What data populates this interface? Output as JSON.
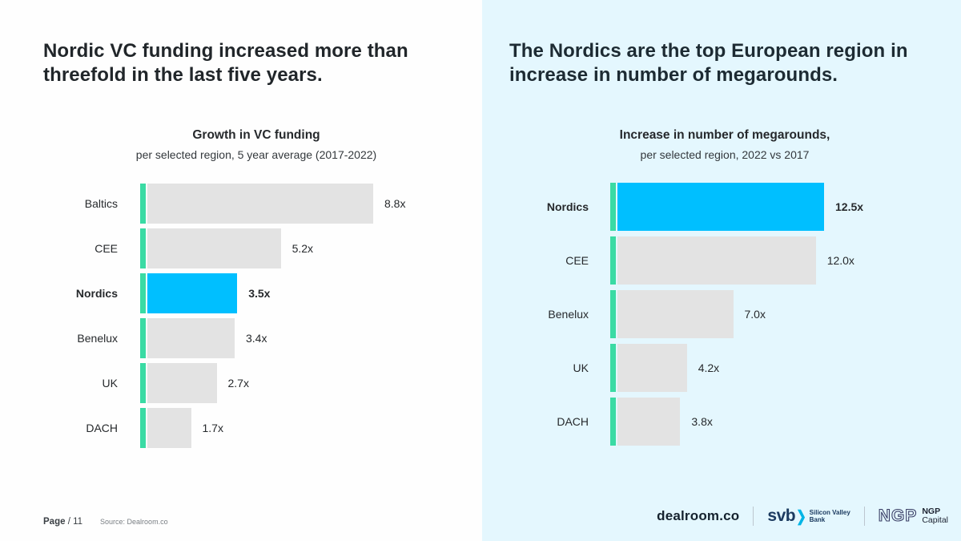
{
  "left": {
    "headline_lines": [
      "Nordic VC funding increased more than",
      "threefold in the last five years."
    ]
  },
  "right": {
    "headline_lines": [
      "The Nordics are the top European region in",
      "increase in number of megarounds."
    ]
  },
  "chart_data": [
    {
      "type": "bar",
      "orientation": "horizontal",
      "title": "Growth in VC funding",
      "subtitle": "per selected region, 5 year average (2017-2022)",
      "categories": [
        "Baltics",
        "CEE",
        "Nordics",
        "Benelux",
        "UK",
        "DACH"
      ],
      "values": [
        8.8,
        5.2,
        3.5,
        3.4,
        2.7,
        1.7
      ],
      "value_labels": [
        "8.8x",
        "5.2x",
        "3.5x",
        "3.4x",
        "2.7x",
        "1.7x"
      ],
      "highlight_category": "Nordics",
      "xlim": [
        0,
        8.8
      ],
      "grid": false,
      "legend": false,
      "bar_color_default": "#e3e3e3",
      "bar_color_highlight": "#00bfff",
      "accent_color": "#3adba4"
    },
    {
      "type": "bar",
      "orientation": "horizontal",
      "title": "Increase in number of megarounds,",
      "subtitle": "per selected region, 2022 vs 2017",
      "categories": [
        "Nordics",
        "CEE",
        "Benelux",
        "UK",
        "DACH"
      ],
      "values": [
        12.5,
        12.0,
        7.0,
        4.2,
        3.8
      ],
      "value_labels": [
        "12.5x",
        "12.0x",
        "7.0x",
        "4.2x",
        "3.8x"
      ],
      "highlight_category": "Nordics",
      "xlim": [
        0,
        12.5
      ],
      "grid": false,
      "legend": false,
      "bar_color_default": "#e3e3e3",
      "bar_color_highlight": "#00bfff",
      "accent_color": "#3adba4"
    }
  ],
  "footer": {
    "page_word": "Page",
    "page_number": "/ 11",
    "source": "Source: Dealroom.co",
    "logos": {
      "dealroom": "dealroom.co",
      "svb": {
        "mark": "svb",
        "chevron": "❯",
        "name_line1": "Silicon Valley",
        "name_line2": "Bank"
      },
      "ngp": {
        "monogram": "NGP",
        "name_line1": "NGP",
        "name_line2": "Capital"
      }
    }
  }
}
